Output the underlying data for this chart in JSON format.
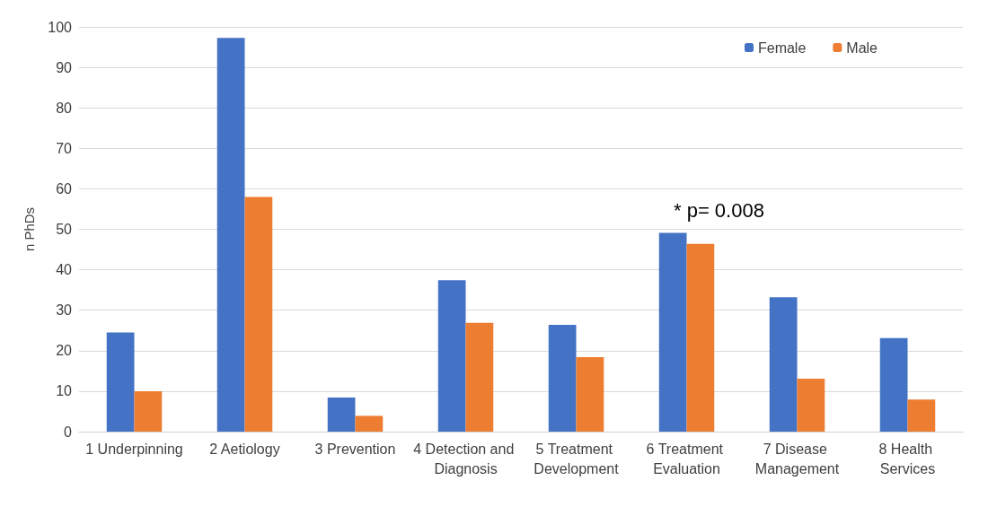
{
  "chart_data": {
    "type": "bar",
    "ylabel": "n PhDs",
    "categories": [
      "1 Underpinning",
      "2 Aetiology",
      "3 Prevention",
      "4 Detection and Diagnosis",
      "5 Treatment Development",
      "6 Treatment Evaluation",
      "7 Disease Management",
      "8 Health Services"
    ],
    "series": [
      {
        "name": "Female",
        "color": "#4472c4",
        "values": [
          24.5,
          97.3,
          8.4,
          37.4,
          26.4,
          49.1,
          33.2,
          23.1
        ]
      },
      {
        "name": "Male",
        "color": "#ed7d31",
        "values": [
          10,
          58,
          3.9,
          26.9,
          18.4,
          46.4,
          13.1,
          7.9
        ]
      }
    ],
    "ylim": [
      0,
      100
    ],
    "yticks": [
      0,
      10,
      20,
      30,
      40,
      50,
      60,
      70,
      80,
      90,
      100
    ],
    "grid": "y",
    "legend": "top right",
    "annotations": [
      "* p= 0.008"
    ]
  }
}
